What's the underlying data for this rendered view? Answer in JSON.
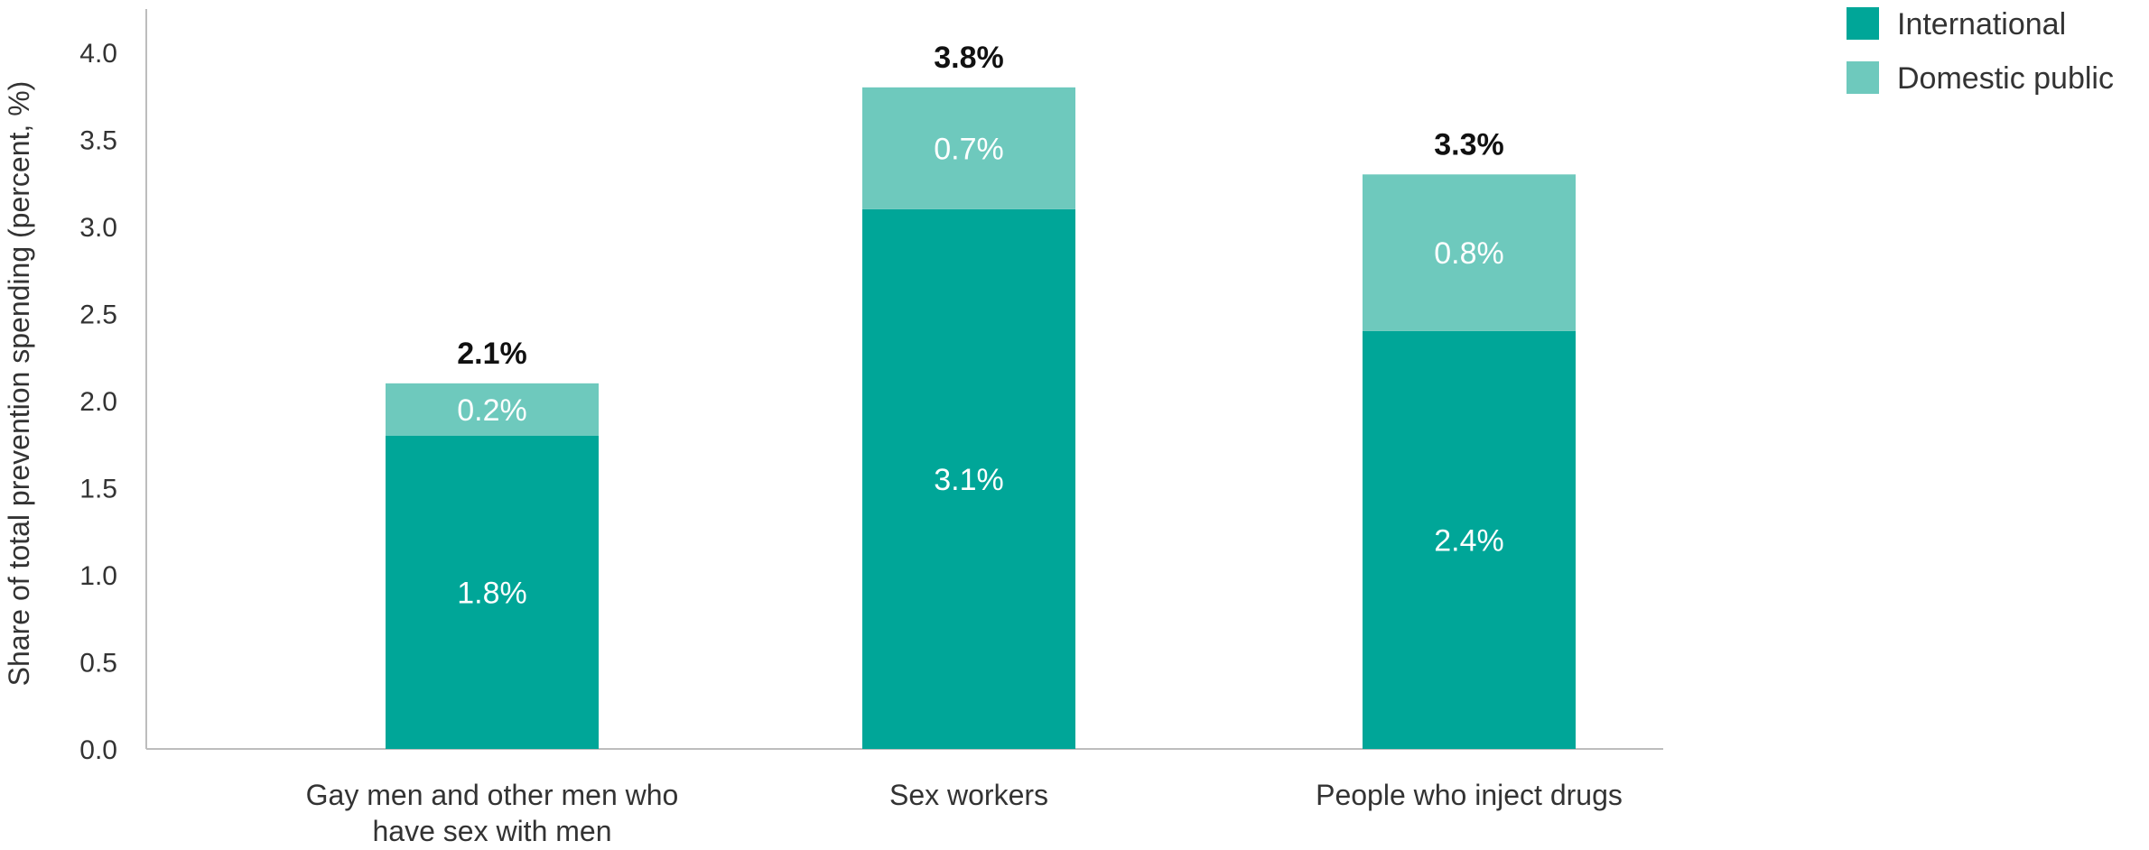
{
  "chart_data": {
    "type": "bar",
    "stacked": true,
    "categories": [
      [
        "Gay men and other men who",
        "have sex with men"
      ],
      [
        "Sex workers"
      ],
      [
        "People who inject drugs"
      ]
    ],
    "series": [
      {
        "name": "International",
        "color": "#00a698",
        "values": [
          1.8,
          3.1,
          2.4
        ],
        "labels": [
          "1.8%",
          "3.1%",
          "2.4%"
        ]
      },
      {
        "name": "Domestic public",
        "color": "#6ec9bd",
        "values": [
          0.2,
          0.7,
          0.8
        ],
        "labels": [
          "0.2%",
          "0.7%",
          "0.8%"
        ]
      }
    ],
    "totals": [
      2.1,
      3.8,
      3.3
    ],
    "total_labels": [
      "2.1%",
      "3.8%",
      "3.3%"
    ],
    "ylabel": "Share of total prevention spending (percent, %)",
    "ylim": [
      0,
      4.25
    ],
    "yticks": [
      "0.0",
      "0.5",
      "1.0",
      "1.5",
      "2.0",
      "2.5",
      "3.0",
      "3.5",
      "4.0"
    ],
    "ytick_values": [
      0,
      0.5,
      1.0,
      1.5,
      2.0,
      2.5,
      3.0,
      3.5,
      4.0
    ],
    "grid": false,
    "legend_position": "top-right"
  }
}
